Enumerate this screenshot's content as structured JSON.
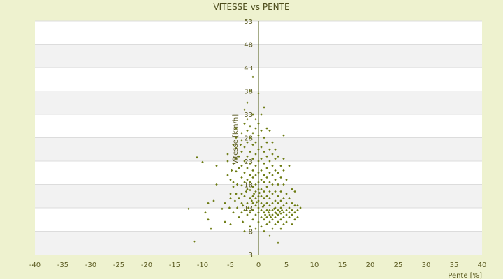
{
  "chart_data": {
    "type": "scatter",
    "title": "VITESSE vs PENTE",
    "xlabel": "Pente [%]",
    "ylabel": "Vitesse [km/h]",
    "xlim": [
      -40,
      40
    ],
    "ylim": [
      3,
      53
    ],
    "x_ticks": [
      -40,
      -35,
      -30,
      -25,
      -20,
      -15,
      -10,
      -5,
      0,
      5,
      10,
      15,
      20,
      25,
      30,
      35,
      40
    ],
    "y_ticks": [
      3,
      8,
      13,
      18,
      23,
      28,
      33,
      38,
      43,
      48,
      53
    ],
    "grid": "alternating horizontal bands",
    "marker_color": "#6b7a10",
    "points": [
      [
        -12.5,
        12.8
      ],
      [
        -11.5,
        5.8
      ],
      [
        -11,
        23.8
      ],
      [
        -10,
        22.8
      ],
      [
        -9.5,
        12
      ],
      [
        -9,
        10.5
      ],
      [
        -9,
        14
      ],
      [
        -8.5,
        8.5
      ],
      [
        -8,
        14.5
      ],
      [
        -7.5,
        22
      ],
      [
        -7.5,
        18
      ],
      [
        -6.5,
        12.8
      ],
      [
        -6,
        14
      ],
      [
        -6,
        10
      ],
      [
        -5.5,
        20
      ],
      [
        -5.5,
        23
      ],
      [
        -5.5,
        24.5
      ],
      [
        -5.2,
        13
      ],
      [
        -5,
        15
      ],
      [
        -5,
        9.5
      ],
      [
        -5,
        16
      ],
      [
        -5,
        19
      ],
      [
        -4.8,
        21
      ],
      [
        -4.5,
        12
      ],
      [
        -4.5,
        17.5
      ],
      [
        -4.5,
        18.5
      ],
      [
        -4.5,
        22.5
      ],
      [
        -4.5,
        26.5
      ],
      [
        -4.2,
        14.5
      ],
      [
        -4,
        16
      ],
      [
        -4,
        20.8
      ],
      [
        -4,
        23.5
      ],
      [
        -4,
        25.8
      ],
      [
        -4,
        28
      ],
      [
        -4,
        30
      ],
      [
        -3.8,
        13
      ],
      [
        -3.8,
        18
      ],
      [
        -3.5,
        11
      ],
      [
        -3.5,
        15
      ],
      [
        -3.5,
        21.5
      ],
      [
        -3.5,
        24
      ],
      [
        -3.2,
        26.5
      ],
      [
        -3,
        12
      ],
      [
        -3,
        14
      ],
      [
        -3,
        16
      ],
      [
        -3,
        17.8
      ],
      [
        -3,
        19.5
      ],
      [
        -3,
        22
      ],
      [
        -3,
        25
      ],
      [
        -3,
        27.5
      ],
      [
        -3,
        29
      ],
      [
        -2.8,
        10
      ],
      [
        -2.8,
        13.5
      ],
      [
        -2.5,
        8
      ],
      [
        -2.5,
        12.5
      ],
      [
        -2.5,
        15.5
      ],
      [
        -2.5,
        18.5
      ],
      [
        -2.5,
        20.5
      ],
      [
        -2.5,
        23
      ],
      [
        -2.5,
        26
      ],
      [
        -2.5,
        31
      ],
      [
        -2.5,
        34
      ],
      [
        -2.2,
        16.5
      ],
      [
        -2,
        11.5
      ],
      [
        -2,
        14
      ],
      [
        -2,
        17
      ],
      [
        -2,
        19
      ],
      [
        -2,
        21.5
      ],
      [
        -2,
        24
      ],
      [
        -2,
        27
      ],
      [
        -2,
        29.5
      ],
      [
        -2,
        32
      ],
      [
        -2,
        35.5
      ],
      [
        -1.8,
        13
      ],
      [
        -1.5,
        9
      ],
      [
        -1.5,
        12
      ],
      [
        -1.5,
        15
      ],
      [
        -1.5,
        16.8
      ],
      [
        -1.5,
        18.5
      ],
      [
        -1.5,
        20
      ],
      [
        -1.5,
        22.5
      ],
      [
        -1.5,
        25
      ],
      [
        -1.5,
        28
      ],
      [
        -1.5,
        30.5
      ],
      [
        -1.5,
        38
      ],
      [
        -1.2,
        14.5
      ],
      [
        -1,
        10.5
      ],
      [
        -1,
        12.5
      ],
      [
        -1,
        14
      ],
      [
        -1,
        15.5
      ],
      [
        -1,
        17.5
      ],
      [
        -1,
        19.5
      ],
      [
        -1,
        21
      ],
      [
        -1,
        23.5
      ],
      [
        -1,
        26.5
      ],
      [
        -1,
        29
      ],
      [
        -1,
        33
      ],
      [
        -1,
        41
      ],
      [
        -0.8,
        16
      ],
      [
        -0.5,
        8.5
      ],
      [
        -0.5,
        11.5
      ],
      [
        -0.5,
        13.5
      ],
      [
        -0.5,
        15
      ],
      [
        -0.5,
        16.5
      ],
      [
        -0.5,
        18
      ],
      [
        -0.5,
        20
      ],
      [
        -0.5,
        22
      ],
      [
        -0.5,
        24.5
      ],
      [
        -0.5,
        27
      ],
      [
        -0.5,
        30
      ],
      [
        -0.5,
        32
      ],
      [
        -0.3,
        14.2
      ],
      [
        0,
        10
      ],
      [
        0,
        12
      ],
      [
        0,
        13
      ],
      [
        0,
        14.5
      ],
      [
        0,
        15.5
      ],
      [
        0,
        17
      ],
      [
        0,
        18.5
      ],
      [
        0,
        20.5
      ],
      [
        0,
        23
      ],
      [
        0,
        25.5
      ],
      [
        0,
        28.5
      ],
      [
        0,
        31
      ],
      [
        0,
        37.5
      ],
      [
        0.2,
        16.2
      ],
      [
        0.5,
        9
      ],
      [
        0.5,
        11
      ],
      [
        0.5,
        12.5
      ],
      [
        0.5,
        14
      ],
      [
        0.5,
        15.5
      ],
      [
        0.5,
        17
      ],
      [
        0.5,
        19
      ],
      [
        0.5,
        21
      ],
      [
        0.5,
        23.5
      ],
      [
        0.5,
        26
      ],
      [
        0.5,
        29.5
      ],
      [
        0.5,
        33
      ],
      [
        0.8,
        13.2
      ],
      [
        1,
        8
      ],
      [
        1,
        10.5
      ],
      [
        1,
        12
      ],
      [
        1,
        13.5
      ],
      [
        1,
        15
      ],
      [
        1,
        16.5
      ],
      [
        1,
        18.5
      ],
      [
        1,
        20
      ],
      [
        1,
        22.5
      ],
      [
        1,
        25
      ],
      [
        1,
        28
      ],
      [
        1,
        34.5
      ],
      [
        1.2,
        11.5
      ],
      [
        1.5,
        9.5
      ],
      [
        1.5,
        11
      ],
      [
        1.5,
        12.5
      ],
      [
        1.5,
        14
      ],
      [
        1.5,
        15.5
      ],
      [
        1.5,
        17.5
      ],
      [
        1.5,
        19.5
      ],
      [
        1.5,
        21.5
      ],
      [
        1.5,
        24
      ],
      [
        1.5,
        27
      ],
      [
        1.5,
        30
      ],
      [
        1.8,
        12
      ],
      [
        2,
        7
      ],
      [
        2,
        10
      ],
      [
        2,
        11.5
      ],
      [
        2,
        12.5
      ],
      [
        2,
        13.5
      ],
      [
        2,
        15
      ],
      [
        2,
        16.5
      ],
      [
        2,
        18.5
      ],
      [
        2,
        20.5
      ],
      [
        2,
        23
      ],
      [
        2,
        25.5
      ],
      [
        2,
        29.5
      ],
      [
        2.2,
        11
      ],
      [
        2.5,
        8.5
      ],
      [
        2.5,
        10.5
      ],
      [
        2.5,
        11.5
      ],
      [
        2.5,
        12.5
      ],
      [
        2.5,
        14
      ],
      [
        2.5,
        16
      ],
      [
        2.5,
        18
      ],
      [
        2.5,
        20
      ],
      [
        2.5,
        22
      ],
      [
        2.5,
        24.5
      ],
      [
        2.5,
        27
      ],
      [
        2.8,
        12.8
      ],
      [
        3,
        9.5
      ],
      [
        3,
        11
      ],
      [
        3,
        12
      ],
      [
        3,
        13
      ],
      [
        3,
        14.5
      ],
      [
        3,
        16.5
      ],
      [
        3,
        19
      ],
      [
        3,
        21
      ],
      [
        3,
        23.5
      ],
      [
        3,
        25.5
      ],
      [
        3.2,
        11.8
      ],
      [
        3.5,
        5.5
      ],
      [
        3.5,
        10
      ],
      [
        3.5,
        11.5
      ],
      [
        3.5,
        12.5
      ],
      [
        3.5,
        14
      ],
      [
        3.5,
        15.5
      ],
      [
        3.5,
        18
      ],
      [
        3.5,
        20.5
      ],
      [
        3.5,
        24
      ],
      [
        3.8,
        12.2
      ],
      [
        4,
        8.5
      ],
      [
        4,
        10.5
      ],
      [
        4,
        11.8
      ],
      [
        4,
        13
      ],
      [
        4,
        14.5
      ],
      [
        4,
        16.5
      ],
      [
        4,
        19.5
      ],
      [
        4,
        22
      ],
      [
        4.2,
        12.5
      ],
      [
        4.5,
        9.5
      ],
      [
        4.5,
        11
      ],
      [
        4.5,
        12
      ],
      [
        4.5,
        13.5
      ],
      [
        4.5,
        15
      ],
      [
        4.5,
        18
      ],
      [
        4.5,
        21
      ],
      [
        4.5,
        23.5
      ],
      [
        4.5,
        28.5
      ],
      [
        5,
        10
      ],
      [
        5,
        11.5
      ],
      [
        5,
        12.5
      ],
      [
        5,
        14
      ],
      [
        5,
        16
      ],
      [
        5,
        19
      ],
      [
        5.5,
        11
      ],
      [
        5.5,
        12
      ],
      [
        5.5,
        13
      ],
      [
        5.5,
        15
      ],
      [
        5.5,
        22
      ],
      [
        6,
        9.5
      ],
      [
        6,
        11.5
      ],
      [
        6,
        12.5
      ],
      [
        6,
        14
      ],
      [
        6,
        17
      ],
      [
        6.5,
        10.5
      ],
      [
        6.5,
        12
      ],
      [
        6.5,
        13.5
      ],
      [
        6.5,
        16.5
      ],
      [
        7,
        11
      ],
      [
        7,
        12.5
      ],
      [
        7,
        13.5
      ],
      [
        7.5,
        13
      ]
    ]
  }
}
